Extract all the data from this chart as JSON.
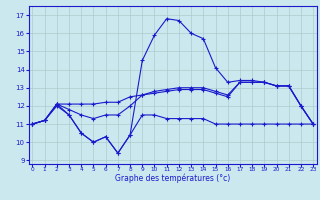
{
  "xlabel": "Graphe des températures (°c)",
  "bg_color": "#cce8ef",
  "line_color": "#1a1acc",
  "grid_color": "#aacccc",
  "x_ticks": [
    0,
    1,
    2,
    3,
    4,
    5,
    6,
    7,
    8,
    9,
    10,
    11,
    12,
    13,
    14,
    15,
    16,
    17,
    18,
    19,
    20,
    21,
    22,
    23
  ],
  "y_ticks": [
    9,
    10,
    11,
    12,
    13,
    14,
    15,
    16,
    17
  ],
  "xlim": [
    -0.3,
    23.3
  ],
  "ylim": [
    8.8,
    17.5
  ],
  "series": [
    {
      "x": [
        0,
        1,
        2,
        3,
        4,
        5,
        6,
        7,
        8,
        9,
        10,
        11,
        12,
        13,
        14,
        15,
        16,
        17,
        18,
        19,
        20,
        21,
        22,
        23
      ],
      "y": [
        11.0,
        11.2,
        12.0,
        11.5,
        10.5,
        10.0,
        10.3,
        9.4,
        10.4,
        11.5,
        11.5,
        11.3,
        11.3,
        11.3,
        11.3,
        11.0,
        11.0,
        11.0,
        11.0,
        11.0,
        11.0,
        11.0,
        11.0,
        11.0
      ]
    },
    {
      "x": [
        0,
        1,
        2,
        3,
        4,
        5,
        6,
        7,
        8,
        9,
        10,
        11,
        12,
        13,
        14,
        15,
        16,
        17,
        18,
        19,
        20,
        21,
        22,
        23
      ],
      "y": [
        11.0,
        11.2,
        12.1,
        12.1,
        12.1,
        12.1,
        12.2,
        12.2,
        12.5,
        12.6,
        12.7,
        12.8,
        12.9,
        12.9,
        12.9,
        12.7,
        12.5,
        13.3,
        13.3,
        13.3,
        13.1,
        13.1,
        12.0,
        11.0
      ]
    },
    {
      "x": [
        0,
        1,
        2,
        3,
        4,
        5,
        6,
        7,
        8,
        9,
        10,
        11,
        12,
        13,
        14,
        15,
        16,
        17,
        18,
        19,
        20,
        21,
        22,
        23
      ],
      "y": [
        11.0,
        11.2,
        12.1,
        11.8,
        11.5,
        11.3,
        11.5,
        11.5,
        12.0,
        12.6,
        12.8,
        12.9,
        13.0,
        13.0,
        13.0,
        12.8,
        12.6,
        13.3,
        13.3,
        13.3,
        13.1,
        13.1,
        12.0,
        11.0
      ]
    },
    {
      "x": [
        0,
        1,
        2,
        3,
        4,
        5,
        6,
        7,
        8,
        9,
        10,
        11,
        12,
        13,
        14,
        15,
        16,
        17,
        18,
        19,
        20,
        21,
        22,
        23
      ],
      "y": [
        11.0,
        11.2,
        12.1,
        11.5,
        10.5,
        10.0,
        10.3,
        9.4,
        10.4,
        14.5,
        15.9,
        16.8,
        16.7,
        16.0,
        15.7,
        14.1,
        13.3,
        13.4,
        13.4,
        13.3,
        13.1,
        13.1,
        12.0,
        11.0
      ]
    }
  ]
}
